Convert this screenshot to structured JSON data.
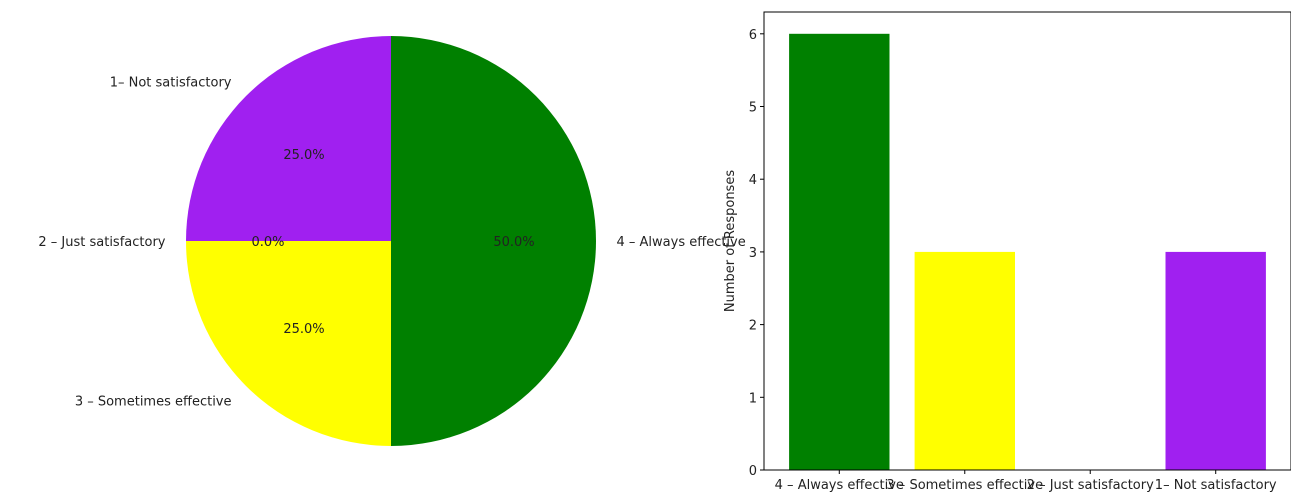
{
  "chart_data": [
    {
      "type": "pie",
      "labels": [
        "1– Not satisfactory",
        "2 – Just satisfactory",
        "3 – Sometimes effective",
        "4 – Always effective"
      ],
      "values": [
        3,
        0,
        3,
        6
      ],
      "percent_labels": [
        "25.0%",
        "0.0%",
        "25.0%",
        "50.0%"
      ],
      "colors": [
        "#a020f0",
        "#ff0000",
        "#ffff00",
        "#008000"
      ]
    },
    {
      "type": "bar",
      "categories": [
        "4 – Always effective",
        "3 – Sometimes effective",
        "2 – Just satisfactory",
        "1– Not satisfactory"
      ],
      "values": [
        6,
        3,
        0,
        3
      ],
      "colors": [
        "#008000",
        "#ffff00",
        "#ff0000",
        "#a020f0"
      ],
      "ylabel": "Number of Responses",
      "ylim": [
        0,
        6.3
      ],
      "yticks": [
        0,
        1,
        2,
        3,
        4,
        5,
        6
      ],
      "grid": false
    }
  ]
}
